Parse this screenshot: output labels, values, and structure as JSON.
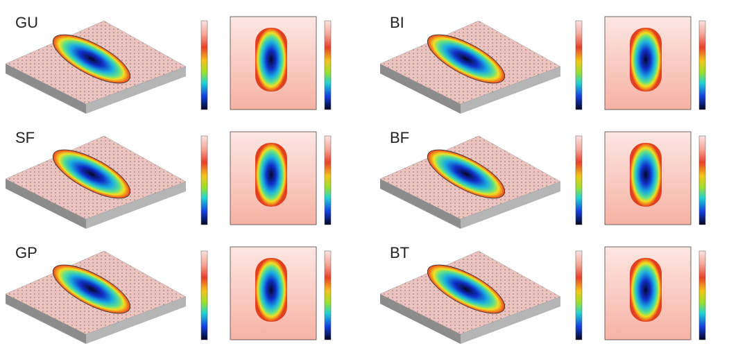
{
  "panels": [
    {
      "label": "GU"
    },
    {
      "label": "BI"
    },
    {
      "label": "SF"
    },
    {
      "label": "BF"
    },
    {
      "label": "GP"
    },
    {
      "label": "BT"
    }
  ]
}
